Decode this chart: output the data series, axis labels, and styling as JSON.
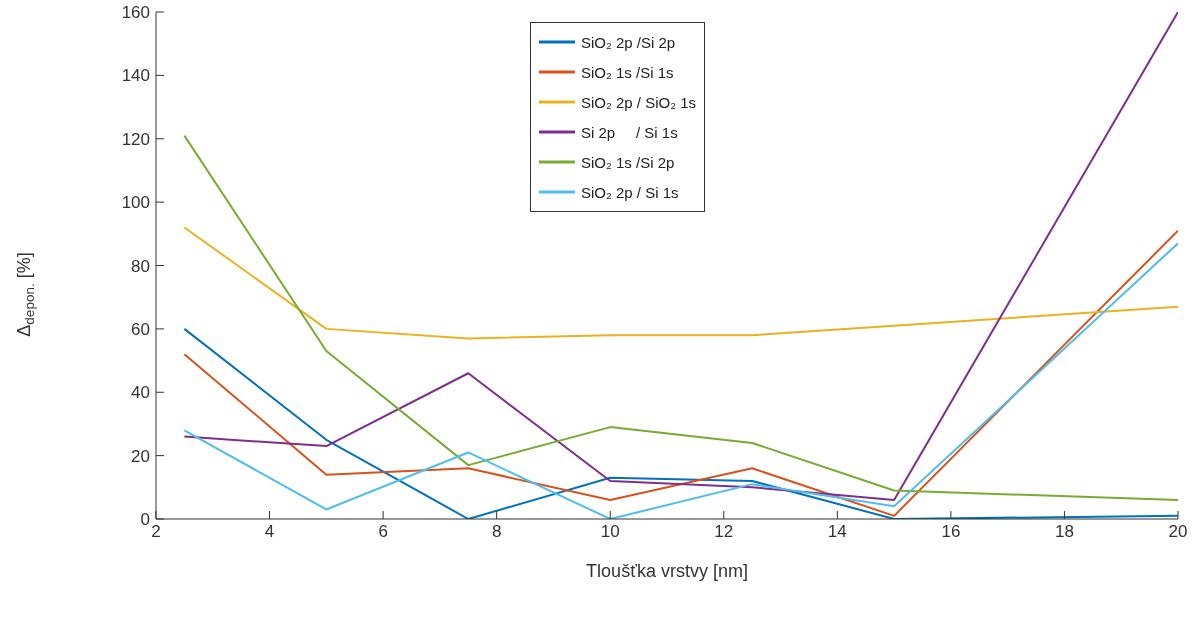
{
  "chart_data": {
    "type": "line",
    "xlabel": "Tloušťka vrstvy [nm]",
    "ylabel": "Δ$_{depon.}$ [%]",
    "x": [
      2.5,
      5,
      7.5,
      10,
      12.5,
      15,
      20
    ],
    "series": [
      {
        "name": "SiO₂ 2p /Si 2p",
        "color": "#0072bd",
        "values": [
          60,
          25,
          0,
          13,
          12,
          0,
          1
        ]
      },
      {
        "name": "SiO₂ 1s /Si 1s",
        "color": "#d95319",
        "values": [
          52,
          14,
          16,
          6,
          16,
          1,
          91
        ]
      },
      {
        "name": "SiO₂ 2p / SiO₂ 1s",
        "color": "#edb120",
        "values": [
          92,
          60,
          57,
          58,
          58,
          61,
          67
        ]
      },
      {
        "name": "Si 2p     / Si 1s",
        "color": "#7e2f8e",
        "values": [
          26,
          23,
          46,
          12,
          10,
          6,
          160
        ]
      },
      {
        "name": "SiO₂ 1s /Si 2p",
        "color": "#77ac30",
        "values": [
          121,
          53,
          17,
          29,
          24,
          9,
          6
        ]
      },
      {
        "name": "SiO₂ 2p / Si 1s",
        "color": "#4dbeee",
        "values": [
          28,
          3,
          21,
          0,
          11,
          4,
          87
        ]
      }
    ],
    "xlim": [
      2,
      20
    ],
    "xticks": [
      2,
      4,
      6,
      8,
      10,
      12,
      14,
      16,
      18,
      20
    ],
    "ylim": [
      0,
      160
    ],
    "yticks": [
      0,
      20,
      40,
      60,
      80,
      100,
      120,
      140,
      160
    ],
    "legend": "top",
    "line_style": "solid",
    "marker": "none",
    "grid": false
  }
}
